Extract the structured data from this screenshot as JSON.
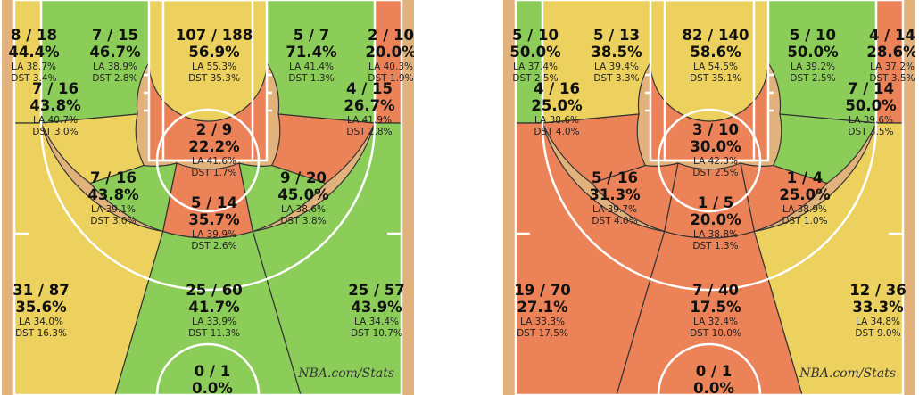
{
  "colors": {
    "hot": "#8ccd5a",
    "avg": "#ecd15e",
    "cold": "#ec8258",
    "line": "#ffffff",
    "zone_border": "#333333",
    "court_frame": "#e2b27c"
  },
  "chart_data": [
    {
      "type": "shot-chart",
      "credit": "NBA.com/Stats",
      "zones": [
        {
          "id": "left-corner-3",
          "ratio": "8 / 18",
          "pct": "44.4%",
          "la": "LA 38.7%",
          "dst": "DST 3.4%",
          "made": 8,
          "attempts": 18,
          "fg_pct": 44.4,
          "league_avg": 38.7,
          "dist_pct": 3.4,
          "rating": "avg"
        },
        {
          "id": "left-baseline-mid",
          "ratio": "7 / 15",
          "pct": "46.7%",
          "la": "LA 38.9%",
          "dst": "DST 2.8%",
          "made": 7,
          "attempts": 15,
          "fg_pct": 46.7,
          "league_avg": 38.9,
          "dist_pct": 2.8,
          "rating": "hot"
        },
        {
          "id": "restricted-area",
          "ratio": "107 / 188",
          "pct": "56.9%",
          "la": "LA 55.3%",
          "dst": "DST 35.3%",
          "made": 107,
          "attempts": 188,
          "fg_pct": 56.9,
          "league_avg": 55.3,
          "dist_pct": 35.3,
          "rating": "avg"
        },
        {
          "id": "right-baseline-mid",
          "ratio": "5 / 7",
          "pct": "71.4%",
          "la": "LA 41.4%",
          "dst": "DST 1.3%",
          "made": 5,
          "attempts": 7,
          "fg_pct": 71.4,
          "league_avg": 41.4,
          "dist_pct": 1.3,
          "rating": "hot"
        },
        {
          "id": "right-corner-3",
          "ratio": "2 / 10",
          "pct": "20.0%",
          "la": "LA 40.3%",
          "dst": "DST 1.9%",
          "made": 2,
          "attempts": 10,
          "fg_pct": 20.0,
          "league_avg": 40.3,
          "dist_pct": 1.9,
          "rating": "cold"
        },
        {
          "id": "left-elbow-mid",
          "ratio": "7 / 16",
          "pct": "43.8%",
          "la": "LA 40.7%",
          "dst": "DST 3.0%",
          "made": 7,
          "attempts": 16,
          "fg_pct": 43.8,
          "league_avg": 40.7,
          "dist_pct": 3.0,
          "rating": "avg"
        },
        {
          "id": "right-elbow-mid",
          "ratio": "4 / 15",
          "pct": "26.7%",
          "la": "LA 41.9%",
          "dst": "DST 2.8%",
          "made": 4,
          "attempts": 15,
          "fg_pct": 26.7,
          "league_avg": 41.9,
          "dist_pct": 2.8,
          "rating": "cold"
        },
        {
          "id": "paint-non-ra",
          "ratio": "2 / 9",
          "pct": "22.2%",
          "la": "LA 41.6%",
          "dst": "DST 1.7%",
          "made": 2,
          "attempts": 9,
          "fg_pct": 22.2,
          "league_avg": 41.6,
          "dist_pct": 1.7,
          "rating": "cold"
        },
        {
          "id": "left-wing-mid",
          "ratio": "7 / 16",
          "pct": "43.8%",
          "la": "LA 39.1%",
          "dst": "DST 3.0%",
          "made": 7,
          "attempts": 16,
          "fg_pct": 43.8,
          "league_avg": 39.1,
          "dist_pct": 3.0,
          "rating": "hot"
        },
        {
          "id": "top-key-mid",
          "ratio": "5 / 14",
          "pct": "35.7%",
          "la": "LA 39.9%",
          "dst": "DST 2.6%",
          "made": 5,
          "attempts": 14,
          "fg_pct": 35.7,
          "league_avg": 39.9,
          "dist_pct": 2.6,
          "rating": "cold"
        },
        {
          "id": "right-wing-mid",
          "ratio": "9 / 20",
          "pct": "45.0%",
          "la": "LA 38.6%",
          "dst": "DST 3.8%",
          "made": 9,
          "attempts": 20,
          "fg_pct": 45.0,
          "league_avg": 38.6,
          "dist_pct": 3.8,
          "rating": "hot"
        },
        {
          "id": "left-wing-3",
          "ratio": "31 / 87",
          "pct": "35.6%",
          "la": "LA 34.0%",
          "dst": "DST 16.3%",
          "made": 31,
          "attempts": 87,
          "fg_pct": 35.6,
          "league_avg": 34.0,
          "dist_pct": 16.3,
          "rating": "avg"
        },
        {
          "id": "top-3",
          "ratio": "25 / 60",
          "pct": "41.7%",
          "la": "LA 33.9%",
          "dst": "DST 11.3%",
          "made": 25,
          "attempts": 60,
          "fg_pct": 41.7,
          "league_avg": 33.9,
          "dist_pct": 11.3,
          "rating": "hot"
        },
        {
          "id": "right-wing-3",
          "ratio": "25 / 57",
          "pct": "43.9%",
          "la": "LA 34.4%",
          "dst": "DST 10.7%",
          "made": 25,
          "attempts": 57,
          "fg_pct": 43.9,
          "league_avg": 34.4,
          "dist_pct": 10.7,
          "rating": "hot"
        },
        {
          "id": "backcourt",
          "ratio": "0 / 1",
          "pct": "0.0%",
          "la": "",
          "dst": "",
          "made": 0,
          "attempts": 1,
          "fg_pct": 0.0,
          "rating": "none"
        }
      ]
    },
    {
      "type": "shot-chart",
      "credit": "NBA.com/Stats",
      "zones": [
        {
          "id": "left-corner-3",
          "ratio": "5 / 10",
          "pct": "50.0%",
          "la": "LA 37.4%",
          "dst": "DST 2.5%",
          "made": 5,
          "attempts": 10,
          "fg_pct": 50.0,
          "league_avg": 37.4,
          "dist_pct": 2.5,
          "rating": "hot"
        },
        {
          "id": "left-baseline-mid",
          "ratio": "5 / 13",
          "pct": "38.5%",
          "la": "LA 39.4%",
          "dst": "DST 3.3%",
          "made": 5,
          "attempts": 13,
          "fg_pct": 38.5,
          "league_avg": 39.4,
          "dist_pct": 3.3,
          "rating": "avg"
        },
        {
          "id": "restricted-area",
          "ratio": "82 / 140",
          "pct": "58.6%",
          "la": "LA 54.5%",
          "dst": "DST 35.1%",
          "made": 82,
          "attempts": 140,
          "fg_pct": 58.6,
          "league_avg": 54.5,
          "dist_pct": 35.1,
          "rating": "avg"
        },
        {
          "id": "right-baseline-mid",
          "ratio": "5 / 10",
          "pct": "50.0%",
          "la": "LA 39.2%",
          "dst": "DST 2.5%",
          "made": 5,
          "attempts": 10,
          "fg_pct": 50.0,
          "league_avg": 39.2,
          "dist_pct": 2.5,
          "rating": "hot"
        },
        {
          "id": "right-corner-3",
          "ratio": "4 / 14",
          "pct": "28.6%",
          "la": "LA 37.2%",
          "dst": "DST 3.5%",
          "made": 4,
          "attempts": 14,
          "fg_pct": 28.6,
          "league_avg": 37.2,
          "dist_pct": 3.5,
          "rating": "cold"
        },
        {
          "id": "left-elbow-mid",
          "ratio": "4 / 16",
          "pct": "25.0%",
          "la": "LA 38.6%",
          "dst": "DST 4.0%",
          "made": 4,
          "attempts": 16,
          "fg_pct": 25.0,
          "league_avg": 38.6,
          "dist_pct": 4.0,
          "rating": "cold"
        },
        {
          "id": "right-elbow-mid",
          "ratio": "7 / 14",
          "pct": "50.0%",
          "la": "LA 39.6%",
          "dst": "DST 3.5%",
          "made": 7,
          "attempts": 14,
          "fg_pct": 50.0,
          "league_avg": 39.6,
          "dist_pct": 3.5,
          "rating": "hot"
        },
        {
          "id": "paint-non-ra",
          "ratio": "3 / 10",
          "pct": "30.0%",
          "la": "LA 42.3%",
          "dst": "DST 2.5%",
          "made": 3,
          "attempts": 10,
          "fg_pct": 30.0,
          "league_avg": 42.3,
          "dist_pct": 2.5,
          "rating": "cold"
        },
        {
          "id": "left-wing-mid",
          "ratio": "5 / 16",
          "pct": "31.3%",
          "la": "LA 39.7%",
          "dst": "DST 4.0%",
          "made": 5,
          "attempts": 16,
          "fg_pct": 31.3,
          "league_avg": 39.7,
          "dist_pct": 4.0,
          "rating": "cold"
        },
        {
          "id": "top-key-mid",
          "ratio": "1 / 5",
          "pct": "20.0%",
          "la": "LA 38.8%",
          "dst": "DST 1.3%",
          "made": 1,
          "attempts": 5,
          "fg_pct": 20.0,
          "league_avg": 38.8,
          "dist_pct": 1.3,
          "rating": "cold"
        },
        {
          "id": "right-wing-mid",
          "ratio": "1 / 4",
          "pct": "25.0%",
          "la": "LA 38.9%",
          "dst": "DST 1.0%",
          "made": 1,
          "attempts": 4,
          "fg_pct": 25.0,
          "league_avg": 38.9,
          "dist_pct": 1.0,
          "rating": "cold"
        },
        {
          "id": "left-wing-3",
          "ratio": "19 / 70",
          "pct": "27.1%",
          "la": "LA 33.3%",
          "dst": "DST 17.5%",
          "made": 19,
          "attempts": 70,
          "fg_pct": 27.1,
          "league_avg": 33.3,
          "dist_pct": 17.5,
          "rating": "cold"
        },
        {
          "id": "top-3",
          "ratio": "7 / 40",
          "pct": "17.5%",
          "la": "LA 32.4%",
          "dst": "DST 10.0%",
          "made": 7,
          "attempts": 40,
          "fg_pct": 17.5,
          "league_avg": 32.4,
          "dist_pct": 10.0,
          "rating": "cold"
        },
        {
          "id": "right-wing-3",
          "ratio": "12 / 36",
          "pct": "33.3%",
          "la": "LA 34.8%",
          "dst": "DST 9.0%",
          "made": 12,
          "attempts": 36,
          "fg_pct": 33.3,
          "league_avg": 34.8,
          "dist_pct": 9.0,
          "rating": "avg"
        },
        {
          "id": "backcourt",
          "ratio": "0 / 1",
          "pct": "0.0%",
          "la": "",
          "dst": "",
          "made": 0,
          "attempts": 1,
          "fg_pct": 0.0,
          "rating": "none"
        }
      ]
    }
  ]
}
